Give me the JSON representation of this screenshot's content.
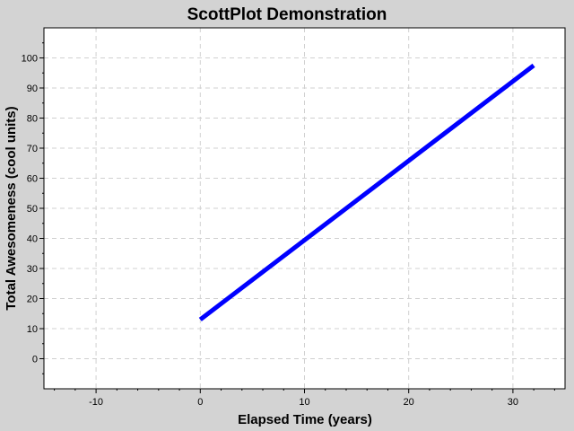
{
  "chart_data": {
    "type": "line",
    "title": "ScottPlot Demonstration",
    "xlabel": "Elapsed Time (years)",
    "ylabel": "Total Awesomeness (cool units)",
    "xlim": [
      -15,
      35
    ],
    "ylim": [
      -10,
      110
    ],
    "x_ticks": [
      -10,
      0,
      10,
      20,
      30
    ],
    "y_ticks": [
      0,
      10,
      20,
      30,
      40,
      50,
      60,
      70,
      80,
      90,
      100
    ],
    "grid": true,
    "series": [
      {
        "color": "#0000ff",
        "x": [
          0,
          32
        ],
        "y": [
          13,
          97.5
        ]
      }
    ]
  }
}
